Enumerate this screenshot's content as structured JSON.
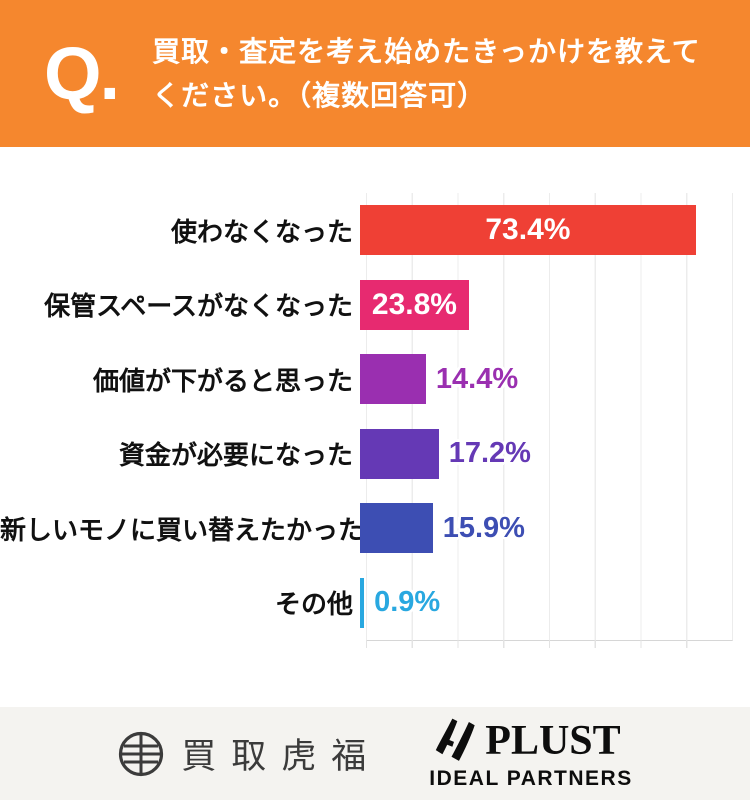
{
  "header": {
    "q_mark": "Q.",
    "question_line1": "買取・査定を考え始めたきっかけを教えて",
    "question_line2": "ください。（複数回答可）",
    "bg_color": "#F5872E"
  },
  "chart_data": {
    "type": "bar",
    "orientation": "horizontal",
    "categories": [
      "使わなくなった",
      "保管スペースがなくなった",
      "価値が下がると思った",
      "資金が必要になった",
      "新しいモノに買い替えたかった",
      "その他"
    ],
    "values": [
      73.4,
      23.8,
      14.4,
      17.2,
      15.9,
      0.9
    ],
    "value_labels": [
      "73.4%",
      "23.8%",
      "14.4%",
      "17.2%",
      "15.9%",
      "0.9%"
    ],
    "bar_colors": [
      "#EF4035",
      "#E72A70",
      "#9A2FB0",
      "#6539B5",
      "#3D4EB3",
      "#29A8E0"
    ],
    "value_label_position": [
      "inside",
      "inside",
      "outside",
      "outside",
      "outside",
      "outside"
    ],
    "title": "",
    "xlabel": "",
    "ylabel": "",
    "xlim": [
      0,
      80
    ],
    "gridline_interval": 10,
    "grid": true,
    "legend": false,
    "gridline_color": "#ececec"
  },
  "footer": {
    "left_logo_text": "買取虎福",
    "right_logo_name": "PLUST",
    "right_logo_sub": "IDEAL PARTNERS",
    "bg_color": "#F4F3F0"
  }
}
